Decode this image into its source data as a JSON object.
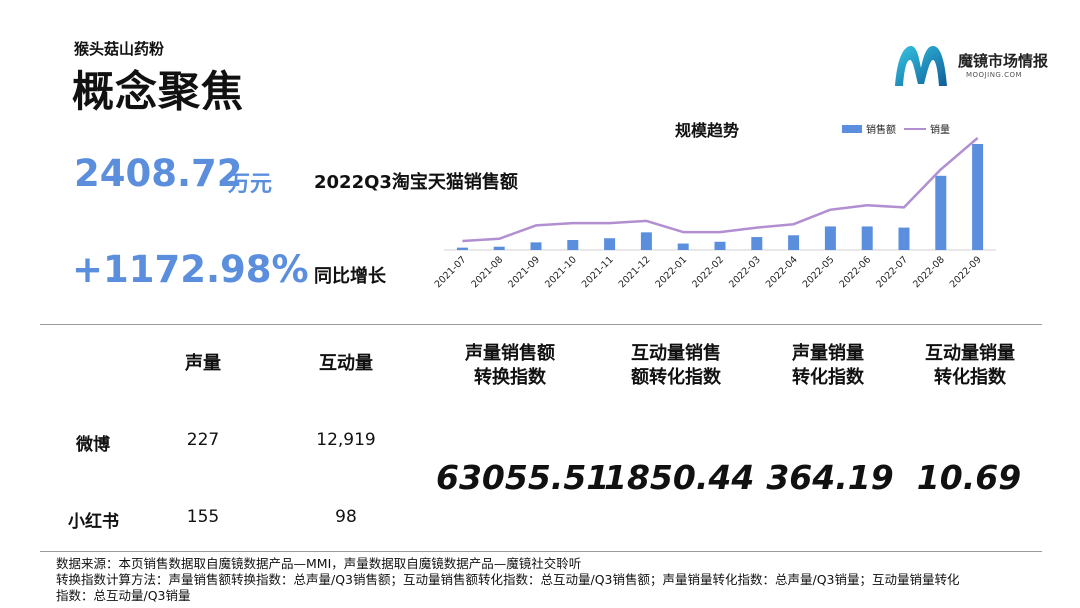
{
  "header": {
    "subtitle": "猴头菇山药粉",
    "title": "概念聚焦"
  },
  "brand": {
    "name": "魔镜市场情报",
    "domain": "MOOJING.COM",
    "colors": {
      "primary": "#1fa3c8",
      "dark": "#0f4f8a"
    }
  },
  "kpis": {
    "sales_value": "2408.72",
    "sales_unit": "万元",
    "sales_label": "2022Q3淘宝天猫销售额",
    "growth_value": "+1172.98%",
    "growth_label": "同比增长"
  },
  "chart_data": {
    "type": "bar",
    "title": "规模趋势",
    "categories": [
      "2021-07",
      "2021-08",
      "2021-09",
      "2021-10",
      "2021-11",
      "2021-12",
      "2022-01",
      "2022-02",
      "2022-03",
      "2022-04",
      "2022-05",
      "2022-06",
      "2022-07",
      "2022-08",
      "2022-09"
    ],
    "series": [
      {
        "name": "销售额",
        "type": "bar",
        "color": "#5b8fde",
        "values": [
          2.0,
          2.8,
          6.5,
          8.5,
          10.0,
          15.0,
          5.5,
          7.0,
          11.0,
          12.5,
          20.0,
          20.0,
          19.0,
          63.0,
          90.0
        ]
      },
      {
        "name": "销量",
        "type": "line",
        "color": "#b28fd0",
        "values": [
          8,
          10,
          22,
          24,
          24,
          26,
          16,
          16,
          20,
          23,
          36,
          40,
          38,
          72,
          100
        ]
      }
    ],
    "legend": "top-right",
    "grid": false
  },
  "table": {
    "headers": [
      "声量",
      "互动量",
      "声量销售额\n转换指数",
      "互动量销售\n额转化指数",
      "声量销量\n转化指数",
      "互动量销量\n转化指数"
    ],
    "rows": [
      {
        "platform": "微博",
        "volume": "227",
        "interaction": "12,919"
      },
      {
        "platform": "小红书",
        "volume": "155",
        "interaction": "98"
      }
    ],
    "indices": [
      "63055.51",
      "1850.44",
      "364.19",
      "10.69"
    ]
  },
  "footnote": {
    "line1": "数据来源：本页销售数据取自魔镜数据产品—MMI，声量数据取自魔镜数据产品—魔镜社交聆听",
    "line2": "转换指数计算方法：声量销售额转换指数：总声量/Q3销售额；互动量销售额转化指数：总互动量/Q3销售额；声量销量转化指数：总声量/Q3销量；互动量销量转化",
    "line3": "指数：总互动量/Q3销量"
  }
}
